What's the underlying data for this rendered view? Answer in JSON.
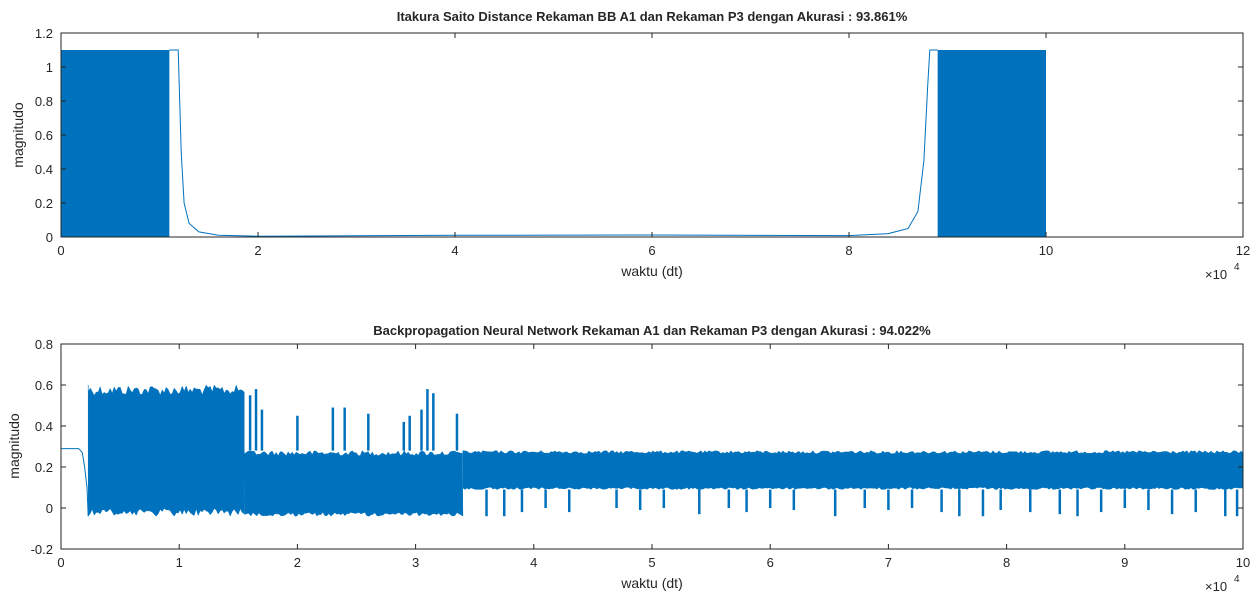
{
  "chart_data": [
    {
      "type": "line",
      "title": "Itakura Saito Distance Rekaman BB A1 dan Rekaman P3 dengan Akurasi : 93.861%",
      "xlabel": "waktu (dt)",
      "ylabel": "magnitudo",
      "xlim": [
        0,
        120000
      ],
      "ylim": [
        0,
        1.2
      ],
      "x_ticks": [
        0,
        2,
        4,
        6,
        8,
        10,
        12
      ],
      "y_ticks": [
        "0",
        "0.2",
        "0.4",
        "0.6",
        "0.8",
        "1",
        "1.2"
      ],
      "x_multiplier": "×10",
      "x_multiplier_exp": "4",
      "grid": false,
      "color": "#0072bd",
      "series": [
        {
          "segments": [
            {
              "kind": "dense",
              "x_start": 0,
              "x_end": 11000,
              "y_min": 0,
              "y_max": 1.1
            },
            {
              "kind": "line",
              "points": [
                [
                  11000,
                  1.1
                ],
                [
                  11900,
                  1.1
                ],
                [
                  12200,
                  0.5
                ],
                [
                  12500,
                  0.2
                ],
                [
                  13000,
                  0.08
                ],
                [
                  14000,
                  0.03
                ],
                [
                  16000,
                  0.01
                ],
                [
                  20000,
                  0.005
                ],
                [
                  40000,
                  0.01
                ],
                [
                  60000,
                  0.012
                ],
                [
                  80000,
                  0.008
                ],
                [
                  84000,
                  0.02
                ],
                [
                  86000,
                  0.05
                ],
                [
                  87000,
                  0.15
                ],
                [
                  87600,
                  0.45
                ],
                [
                  88000,
                  0.9
                ],
                [
                  88200,
                  1.1
                ],
                [
                  89000,
                  1.1
                ]
              ]
            },
            {
              "kind": "dense",
              "x_start": 89000,
              "x_end": 100000,
              "y_min": 0,
              "y_max": 1.1
            }
          ]
        }
      ]
    },
    {
      "type": "line",
      "title": "Backpropagation Neural Network Rekaman A1 dan Rekaman P3 dengan Akurasi : 94.022%",
      "xlabel": "waktu (dt)",
      "ylabel": "magnitudo",
      "xlim": [
        0,
        100000
      ],
      "ylim": [
        -0.2,
        0.8
      ],
      "x_ticks": [
        0,
        1,
        2,
        3,
        4,
        5,
        6,
        7,
        8,
        9,
        10
      ],
      "y_ticks": [
        "-0.2",
        "0",
        "0.2",
        "0.4",
        "0.6",
        "0.8"
      ],
      "x_multiplier": "×10",
      "x_multiplier_exp": "4",
      "grid": false,
      "color": "#0072bd",
      "series": [
        {
          "segments": [
            {
              "kind": "line",
              "points": [
                [
                  0,
                  0.29
                ],
                [
                  1500,
                  0.29
                ],
                [
                  1800,
                  0.27
                ],
                [
                  2000,
                  0.2
                ],
                [
                  2200,
                  0.1
                ],
                [
                  2300,
                  -0.04
                ]
              ]
            },
            {
              "kind": "band",
              "x_start": 2300,
              "x_end": 15500,
              "y_low": -0.04,
              "y_high": 0.6
            },
            {
              "kind": "band",
              "x_start": 15500,
              "x_end": 34000,
              "y_low": -0.04,
              "y_high": 0.28
            },
            {
              "kind": "band",
              "x_start": 34000,
              "x_end": 100000,
              "y_low": 0.09,
              "y_high": 0.28
            },
            {
              "kind": "spikes",
              "points": [
                [
                  16000,
                  0.55
                ],
                [
                  16500,
                  0.58
                ],
                [
                  17000,
                  0.48
                ],
                [
                  20000,
                  0.45
                ],
                [
                  23000,
                  0.49
                ],
                [
                  24000,
                  0.49
                ],
                [
                  26000,
                  0.46
                ],
                [
                  29000,
                  0.42
                ],
                [
                  29500,
                  0.45
                ],
                [
                  30500,
                  0.48
                ],
                [
                  31000,
                  0.58
                ],
                [
                  31500,
                  0.56
                ],
                [
                  33500,
                  0.46
                ]
              ]
            },
            {
              "kind": "dips",
              "points": [
                [
                  36000,
                  -0.04
                ],
                [
                  37500,
                  -0.04
                ],
                [
                  39000,
                  -0.02
                ],
                [
                  41000,
                  0.0
                ],
                [
                  43000,
                  -0.02
                ],
                [
                  47000,
                  0.0
                ],
                [
                  49000,
                  -0.01
                ],
                [
                  51000,
                  0.0
                ],
                [
                  54000,
                  -0.03
                ],
                [
                  56500,
                  0.0
                ],
                [
                  58000,
                  -0.02
                ],
                [
                  60000,
                  0.0
                ],
                [
                  62000,
                  -0.01
                ],
                [
                  65500,
                  -0.04
                ],
                [
                  68000,
                  0.0
                ],
                [
                  70000,
                  -0.01
                ],
                [
                  72000,
                  0.0
                ],
                [
                  74500,
                  -0.02
                ],
                [
                  76000,
                  -0.04
                ],
                [
                  78000,
                  -0.04
                ],
                [
                  79500,
                  -0.01
                ],
                [
                  82000,
                  -0.02
                ],
                [
                  84500,
                  -0.03
                ],
                [
                  86000,
                  -0.04
                ],
                [
                  88000,
                  -0.02
                ],
                [
                  90000,
                  0.0
                ],
                [
                  92000,
                  -0.01
                ],
                [
                  94000,
                  -0.03
                ],
                [
                  96000,
                  -0.02
                ],
                [
                  98500,
                  -0.04
                ],
                [
                  99500,
                  -0.04
                ]
              ]
            }
          ]
        }
      ]
    }
  ]
}
